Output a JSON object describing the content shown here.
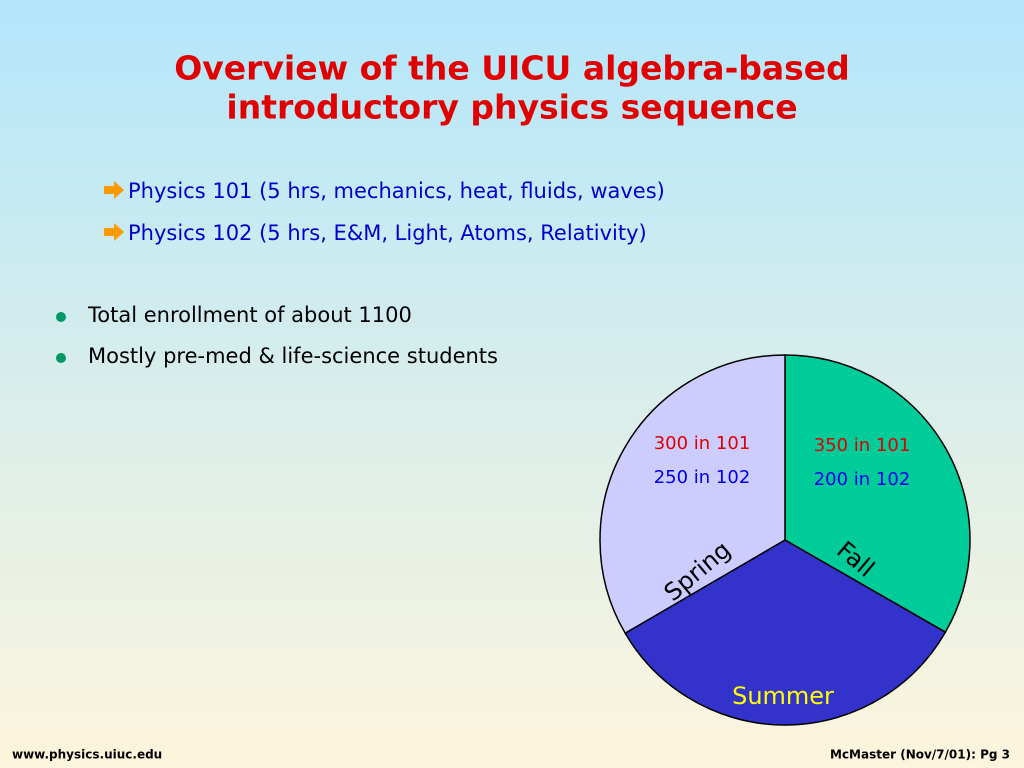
{
  "title": [
    "Overview of the UICU algebra-based",
    "introductory physics sequence"
  ],
  "sub_items": [
    "Physics 101 (5 hrs, mechanics, heat, fluids, waves)",
    "Physics 102 (5 hrs, E&M, Light, Atoms, Relativity)"
  ],
  "bullets": [
    "Total enrollment of about 1100",
    "Mostly pre-med & life-science students"
  ],
  "chart_data": {
    "type": "pie",
    "categories": [
      "Fall",
      "Summer",
      "Spring"
    ],
    "values": [
      33.3,
      33.3,
      33.4
    ],
    "colors": [
      "#00cc99",
      "#3333cc",
      "#ccccff"
    ],
    "label_colors": [
      "#000000",
      "#ffff00",
      "#000000"
    ],
    "notes": [
      [
        {
          "text": "350 in 101",
          "color": "#e00000"
        },
        {
          "text": "200 in 102",
          "color": "#0000ee"
        }
      ],
      [],
      [
        {
          "text": "300 in 101",
          "color": "#e00000"
        },
        {
          "text": "250 in 102",
          "color": "#0000ee"
        }
      ]
    ]
  },
  "footer": {
    "left": "www.physics.uiuc.edu",
    "right": "McMaster (Nov/7/01): Pg 3"
  }
}
